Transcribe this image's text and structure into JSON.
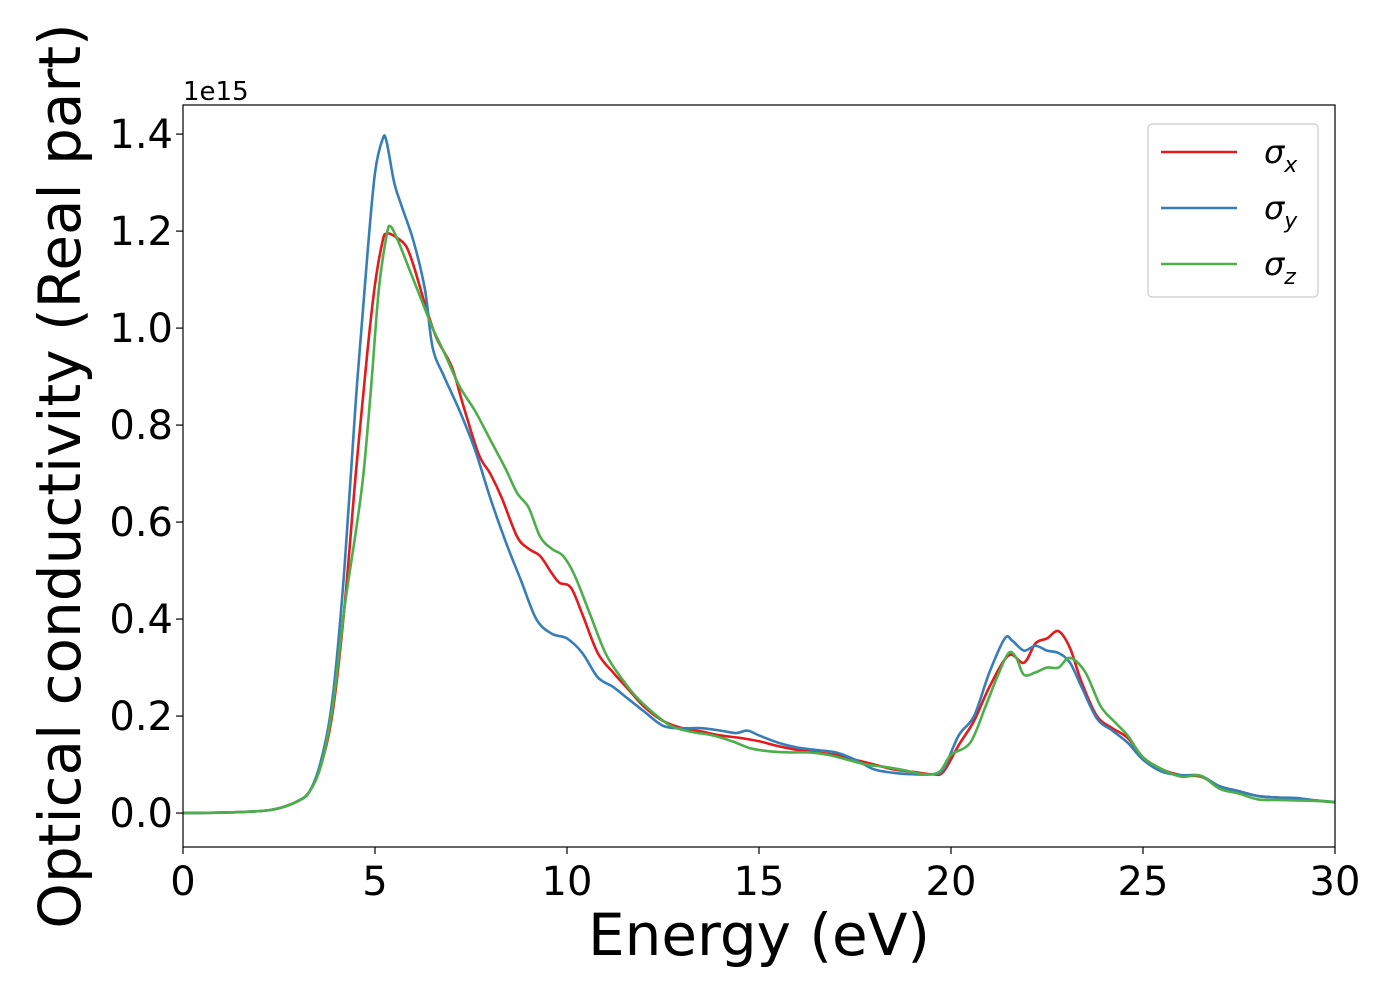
{
  "chart_data": {
    "type": "line",
    "xlabel": "Energy (eV)",
    "ylabel": "Optical conductivity (Real part)",
    "y_offset_label": "1e15",
    "xlim": [
      0,
      30
    ],
    "ylim": [
      -0.07,
      1.46
    ],
    "x_ticks": [
      "0",
      "5",
      "10",
      "15",
      "20",
      "25",
      "30"
    ],
    "y_ticks": [
      "0.0",
      "0.2",
      "0.4",
      "0.6",
      "0.8",
      "1.0",
      "1.2",
      "1.4"
    ],
    "grid": false,
    "legend_position": "top-right",
    "series": [
      {
        "name": "σx",
        "symbol": "σ",
        "subscript": "x",
        "color": "#e41a1c",
        "points": [
          [
            0,
            0.0
          ],
          [
            1,
            0.001
          ],
          [
            2,
            0.004
          ],
          [
            2.5,
            0.01
          ],
          [
            3,
            0.025
          ],
          [
            3.3,
            0.045
          ],
          [
            3.6,
            0.1
          ],
          [
            3.9,
            0.21
          ],
          [
            4.2,
            0.42
          ],
          [
            4.5,
            0.7
          ],
          [
            4.8,
            0.95
          ],
          [
            5.0,
            1.09
          ],
          [
            5.2,
            1.18
          ],
          [
            5.3,
            1.195
          ],
          [
            5.5,
            1.19
          ],
          [
            5.8,
            1.17
          ],
          [
            6.0,
            1.13
          ],
          [
            6.3,
            1.05
          ],
          [
            6.6,
            0.98
          ],
          [
            7.0,
            0.92
          ],
          [
            7.3,
            0.84
          ],
          [
            7.7,
            0.74
          ],
          [
            8.0,
            0.7
          ],
          [
            8.3,
            0.65
          ],
          [
            8.7,
            0.57
          ],
          [
            9.0,
            0.545
          ],
          [
            9.3,
            0.53
          ],
          [
            9.6,
            0.495
          ],
          [
            9.8,
            0.475
          ],
          [
            10.1,
            0.465
          ],
          [
            10.4,
            0.41
          ],
          [
            10.8,
            0.33
          ],
          [
            11.2,
            0.29
          ],
          [
            11.6,
            0.255
          ],
          [
            12.0,
            0.22
          ],
          [
            12.5,
            0.19
          ],
          [
            13.0,
            0.175
          ],
          [
            13.5,
            0.168
          ],
          [
            14.0,
            0.16
          ],
          [
            14.5,
            0.155
          ],
          [
            15.0,
            0.148
          ],
          [
            15.5,
            0.138
          ],
          [
            16.0,
            0.13
          ],
          [
            16.5,
            0.125
          ],
          [
            17.0,
            0.12
          ],
          [
            17.5,
            0.11
          ],
          [
            18.0,
            0.1
          ],
          [
            18.5,
            0.09
          ],
          [
            19.0,
            0.085
          ],
          [
            19.5,
            0.08
          ],
          [
            19.8,
            0.085
          ],
          [
            20.2,
            0.14
          ],
          [
            20.6,
            0.19
          ],
          [
            21.0,
            0.26
          ],
          [
            21.5,
            0.325
          ],
          [
            21.9,
            0.31
          ],
          [
            22.2,
            0.35
          ],
          [
            22.5,
            0.36
          ],
          [
            22.8,
            0.375
          ],
          [
            23.1,
            0.34
          ],
          [
            23.4,
            0.27
          ],
          [
            23.8,
            0.2
          ],
          [
            24.2,
            0.175
          ],
          [
            24.6,
            0.155
          ],
          [
            25.0,
            0.115
          ],
          [
            25.5,
            0.09
          ],
          [
            26.0,
            0.078
          ],
          [
            26.5,
            0.075
          ],
          [
            27.0,
            0.055
          ],
          [
            27.5,
            0.045
          ],
          [
            28.0,
            0.035
          ],
          [
            28.5,
            0.032
          ],
          [
            29.0,
            0.03
          ],
          [
            29.5,
            0.026
          ],
          [
            30.0,
            0.022
          ]
        ]
      },
      {
        "name": "σy",
        "symbol": "σ",
        "subscript": "y",
        "color": "#377eb8",
        "points": [
          [
            0,
            0.0
          ],
          [
            1,
            0.001
          ],
          [
            2,
            0.004
          ],
          [
            2.5,
            0.01
          ],
          [
            3,
            0.025
          ],
          [
            3.3,
            0.045
          ],
          [
            3.6,
            0.11
          ],
          [
            3.9,
            0.24
          ],
          [
            4.2,
            0.5
          ],
          [
            4.5,
            0.85
          ],
          [
            4.8,
            1.15
          ],
          [
            5.0,
            1.32
          ],
          [
            5.2,
            1.39
          ],
          [
            5.3,
            1.385
          ],
          [
            5.5,
            1.3
          ],
          [
            5.7,
            1.25
          ],
          [
            6.0,
            1.18
          ],
          [
            6.3,
            1.08
          ],
          [
            6.5,
            0.96
          ],
          [
            6.8,
            0.9
          ],
          [
            7.2,
            0.83
          ],
          [
            7.6,
            0.75
          ],
          [
            8.0,
            0.65
          ],
          [
            8.4,
            0.56
          ],
          [
            8.8,
            0.48
          ],
          [
            9.2,
            0.4
          ],
          [
            9.6,
            0.37
          ],
          [
            10.0,
            0.36
          ],
          [
            10.4,
            0.33
          ],
          [
            10.8,
            0.28
          ],
          [
            11.2,
            0.26
          ],
          [
            11.6,
            0.235
          ],
          [
            12.0,
            0.21
          ],
          [
            12.5,
            0.18
          ],
          [
            13.0,
            0.175
          ],
          [
            13.5,
            0.175
          ],
          [
            14.0,
            0.17
          ],
          [
            14.4,
            0.165
          ],
          [
            14.7,
            0.17
          ],
          [
            15.0,
            0.16
          ],
          [
            15.5,
            0.145
          ],
          [
            16.0,
            0.135
          ],
          [
            16.5,
            0.13
          ],
          [
            17.0,
            0.125
          ],
          [
            17.5,
            0.11
          ],
          [
            18.0,
            0.09
          ],
          [
            18.5,
            0.083
          ],
          [
            19.0,
            0.08
          ],
          [
            19.5,
            0.08
          ],
          [
            19.8,
            0.09
          ],
          [
            20.2,
            0.16
          ],
          [
            20.6,
            0.2
          ],
          [
            21.0,
            0.29
          ],
          [
            21.4,
            0.36
          ],
          [
            21.6,
            0.355
          ],
          [
            21.9,
            0.335
          ],
          [
            22.2,
            0.345
          ],
          [
            22.5,
            0.335
          ],
          [
            22.8,
            0.33
          ],
          [
            23.1,
            0.31
          ],
          [
            23.4,
            0.26
          ],
          [
            23.8,
            0.195
          ],
          [
            24.2,
            0.17
          ],
          [
            24.6,
            0.145
          ],
          [
            25.0,
            0.11
          ],
          [
            25.5,
            0.085
          ],
          [
            26.0,
            0.078
          ],
          [
            26.5,
            0.077
          ],
          [
            27.0,
            0.055
          ],
          [
            27.5,
            0.045
          ],
          [
            28.0,
            0.035
          ],
          [
            28.5,
            0.032
          ],
          [
            29.0,
            0.031
          ],
          [
            29.5,
            0.026
          ],
          [
            30.0,
            0.023
          ]
        ]
      },
      {
        "name": "σz",
        "symbol": "σ",
        "subscript": "z",
        "color": "#4daf4a",
        "points": [
          [
            0,
            0.0
          ],
          [
            1,
            0.001
          ],
          [
            2,
            0.004
          ],
          [
            2.5,
            0.01
          ],
          [
            3,
            0.025
          ],
          [
            3.3,
            0.045
          ],
          [
            3.6,
            0.1
          ],
          [
            3.9,
            0.22
          ],
          [
            4.2,
            0.42
          ],
          [
            4.5,
            0.58
          ],
          [
            4.7,
            0.7
          ],
          [
            4.9,
            0.88
          ],
          [
            5.1,
            1.08
          ],
          [
            5.3,
            1.19
          ],
          [
            5.4,
            1.21
          ],
          [
            5.6,
            1.18
          ],
          [
            5.9,
            1.12
          ],
          [
            6.2,
            1.06
          ],
          [
            6.5,
            1.0
          ],
          [
            6.8,
            0.95
          ],
          [
            7.2,
            0.88
          ],
          [
            7.6,
            0.83
          ],
          [
            8.0,
            0.77
          ],
          [
            8.4,
            0.71
          ],
          [
            8.7,
            0.66
          ],
          [
            9.0,
            0.63
          ],
          [
            9.3,
            0.57
          ],
          [
            9.6,
            0.545
          ],
          [
            9.9,
            0.53
          ],
          [
            10.2,
            0.49
          ],
          [
            10.6,
            0.41
          ],
          [
            11.0,
            0.33
          ],
          [
            11.4,
            0.28
          ],
          [
            11.8,
            0.24
          ],
          [
            12.2,
            0.21
          ],
          [
            12.7,
            0.18
          ],
          [
            13.2,
            0.168
          ],
          [
            13.8,
            0.16
          ],
          [
            14.3,
            0.148
          ],
          [
            14.8,
            0.133
          ],
          [
            15.3,
            0.127
          ],
          [
            15.8,
            0.125
          ],
          [
            16.3,
            0.125
          ],
          [
            16.8,
            0.12
          ],
          [
            17.3,
            0.11
          ],
          [
            17.8,
            0.1
          ],
          [
            18.3,
            0.095
          ],
          [
            18.8,
            0.088
          ],
          [
            19.3,
            0.08
          ],
          [
            19.7,
            0.085
          ],
          [
            20.0,
            0.12
          ],
          [
            20.5,
            0.145
          ],
          [
            20.9,
            0.22
          ],
          [
            21.2,
            0.28
          ],
          [
            21.5,
            0.33
          ],
          [
            21.7,
            0.32
          ],
          [
            21.9,
            0.285
          ],
          [
            22.2,
            0.29
          ],
          [
            22.5,
            0.3
          ],
          [
            22.8,
            0.3
          ],
          [
            23.1,
            0.32
          ],
          [
            23.5,
            0.29
          ],
          [
            23.9,
            0.22
          ],
          [
            24.3,
            0.185
          ],
          [
            24.6,
            0.16
          ],
          [
            25.0,
            0.115
          ],
          [
            25.5,
            0.09
          ],
          [
            26.0,
            0.075
          ],
          [
            26.5,
            0.077
          ],
          [
            27.0,
            0.05
          ],
          [
            27.5,
            0.04
          ],
          [
            28.0,
            0.028
          ],
          [
            28.5,
            0.027
          ],
          [
            29.0,
            0.026
          ],
          [
            29.5,
            0.025
          ],
          [
            30.0,
            0.023
          ]
        ]
      }
    ]
  }
}
